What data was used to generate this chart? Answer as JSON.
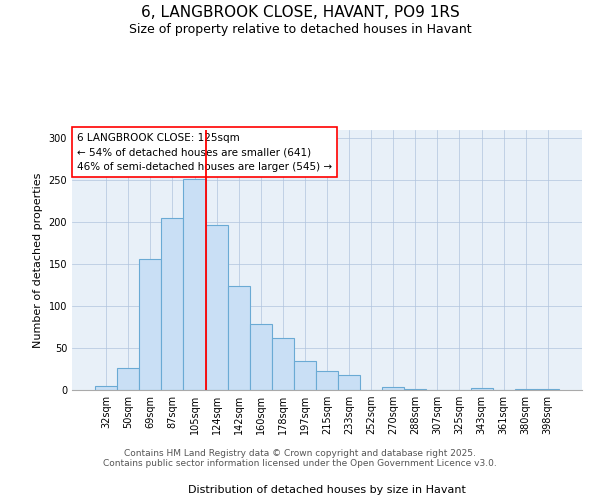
{
  "title": "6, LANGBROOK CLOSE, HAVANT, PO9 1RS",
  "subtitle": "Size of property relative to detached houses in Havant",
  "xlabel": "Distribution of detached houses by size in Havant",
  "ylabel": "Number of detached properties",
  "bar_labels": [
    "32sqm",
    "50sqm",
    "69sqm",
    "87sqm",
    "105sqm",
    "124sqm",
    "142sqm",
    "160sqm",
    "178sqm",
    "197sqm",
    "215sqm",
    "233sqm",
    "252sqm",
    "270sqm",
    "288sqm",
    "307sqm",
    "325sqm",
    "343sqm",
    "361sqm",
    "380sqm",
    "398sqm"
  ],
  "bar_values": [
    5,
    26,
    156,
    205,
    252,
    197,
    124,
    79,
    62,
    35,
    23,
    18,
    0,
    4,
    1,
    0,
    0,
    2,
    0,
    1,
    1
  ],
  "bar_color": "#c9dff5",
  "bar_edge_color": "#6aaad4",
  "vline_x_idx": 4.5,
  "vline_color": "red",
  "annotation_title": "6 LANGBROOK CLOSE: 125sqm",
  "annotation_line1": "← 54% of detached houses are smaller (641)",
  "annotation_line2": "46% of semi-detached houses are larger (545) →",
  "ylim": [
    0,
    310
  ],
  "yticks": [
    0,
    50,
    100,
    150,
    200,
    250,
    300
  ],
  "footer1": "Contains HM Land Registry data © Crown copyright and database right 2025.",
  "footer2": "Contains public sector information licensed under the Open Government Licence v3.0.",
  "title_fontsize": 11,
  "subtitle_fontsize": 9,
  "label_fontsize": 8,
  "tick_fontsize": 7,
  "annotation_fontsize": 7.5,
  "footer_fontsize": 6.5,
  "bg_color": "#e8f0f8"
}
